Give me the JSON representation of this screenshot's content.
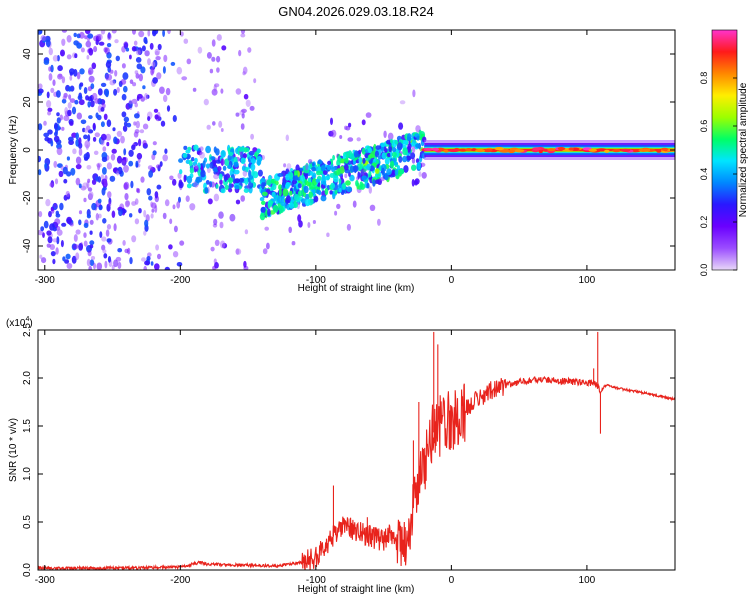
{
  "title": "GN04.2026.029.03.18.R24",
  "chart_data": [
    {
      "type": "heatmap",
      "name": "spectrogram",
      "xlabel": "Height of straight line (km)",
      "ylabel": "Frequency (Hz)",
      "xlim": [
        -305,
        165
      ],
      "ylim": [
        -50,
        50
      ],
      "xticks": [
        -300,
        -200,
        -100,
        0,
        100
      ],
      "yticks": [
        -40,
        -20,
        0,
        20,
        40
      ],
      "colorbar": {
        "label": "Normalized spectral amplitude",
        "range": [
          0,
          1
        ],
        "ticks": [
          0.0,
          0.2,
          0.4,
          0.6,
          0.8
        ],
        "tick_labels": [
          "0.0",
          "0.2",
          "0.4",
          "0.6",
          "0.8"
        ],
        "colormap": [
          "#e8d8f8",
          "#9b4dff",
          "#6a00ff",
          "#2a18ff",
          "#0088ff",
          "#00e5ff",
          "#00ff66",
          "#9cff00",
          "#ffee00",
          "#ff8800",
          "#ff1a1a",
          "#ff33cc"
        ]
      },
      "regions": [
        {
          "x_range": [
            -305,
            -200
          ],
          "description": "noise",
          "amplitude": 0.12
        },
        {
          "x_range": [
            -200,
            -140
          ],
          "description": "weak signal near -8 Hz",
          "amplitude": 0.35
        },
        {
          "x_range": [
            -140,
            -20
          ],
          "description": "signal rising from -20 Hz to 0 Hz",
          "amplitude": 0.45
        },
        {
          "x_range": [
            -20,
            165
          ],
          "description": "strong line at 0 Hz",
          "amplitude": 0.95
        }
      ]
    },
    {
      "type": "line",
      "name": "snr",
      "xlabel": "Height of straight line (km)",
      "ylabel": "SNR (10 * v/v)",
      "yscale_label": "(x10",
      "yscale_exp": "4",
      "yscale_close": ")",
      "xlim": [
        -305,
        165
      ],
      "ylim": [
        0,
        2.5
      ],
      "xticks": [
        -300,
        -200,
        -100,
        0,
        100
      ],
      "yticks": [
        0.0,
        0.5,
        1.0,
        1.5,
        2.0,
        2.5
      ],
      "ytick_labels": [
        "0.0",
        "0.5",
        "1.0",
        "1.5",
        "2.0",
        "2.5"
      ],
      "color": "#e8231c",
      "x": [
        -305,
        -250,
        -200,
        -185,
        -180,
        -150,
        -130,
        -110,
        -100,
        -95,
        -90,
        -85,
        -80,
        -75,
        -70,
        -60,
        -50,
        -45,
        -40,
        -35,
        -30,
        -28,
        -25,
        -22,
        -20,
        -18,
        -15,
        -12,
        -10,
        -5,
        0,
        5,
        10,
        20,
        30,
        40,
        50,
        60,
        70,
        80,
        90,
        100,
        105,
        108,
        110,
        112,
        115,
        120,
        140,
        165
      ],
      "y": [
        0.02,
        0.02,
        0.03,
        0.08,
        0.06,
        0.05,
        0.04,
        0.08,
        0.13,
        0.22,
        0.3,
        0.38,
        0.48,
        0.45,
        0.4,
        0.35,
        0.3,
        0.4,
        0.3,
        0.25,
        0.4,
        0.7,
        0.85,
        1.05,
        1.15,
        1.25,
        1.4,
        1.45,
        1.5,
        1.55,
        1.58,
        1.62,
        1.68,
        1.78,
        1.88,
        1.92,
        1.96,
        1.98,
        1.98,
        1.97,
        1.96,
        1.95,
        1.95,
        1.92,
        1.85,
        1.9,
        1.93,
        1.9,
        1.85,
        1.78
      ],
      "spikes": [
        {
          "x": -87,
          "y": 0.88
        },
        {
          "x": -62,
          "y": 0.55
        },
        {
          "x": -28,
          "y": 1.35
        },
        {
          "x": -24,
          "y": 1.75
        },
        {
          "x": -13,
          "y": 2.48
        },
        {
          "x": -10,
          "y": 2.35
        },
        {
          "x": 105,
          "y": 2.1
        },
        {
          "x": 108,
          "y": 2.48
        },
        {
          "x": 110,
          "y": 1.42
        }
      ]
    }
  ]
}
